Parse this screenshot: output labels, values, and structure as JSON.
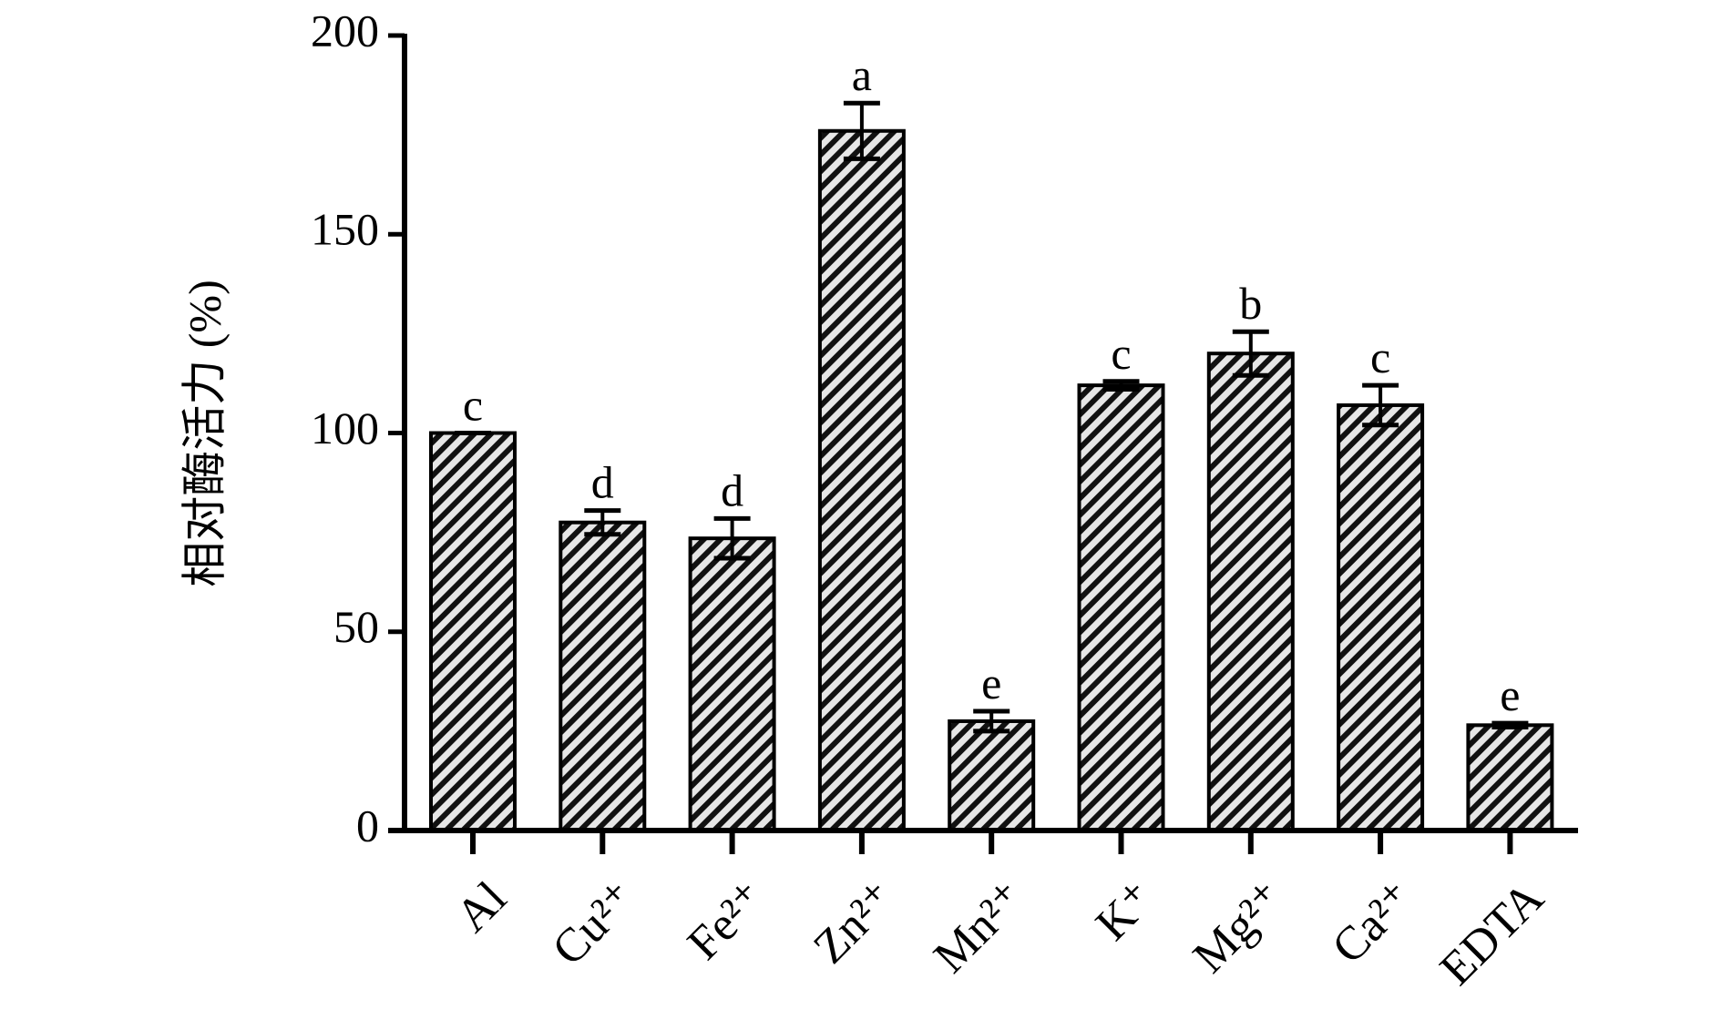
{
  "chart_data": {
    "type": "bar",
    "y_label": "相对酶活力 (%)",
    "categories": [
      "Al",
      "Cu²⁺",
      "Fe²⁺",
      "Zn²⁺",
      "Mn²⁺",
      "K⁺",
      "Mg²⁺",
      "Ca²⁺",
      "EDTA"
    ],
    "values": [
      100,
      77.5,
      73.5,
      176,
      27.5,
      112,
      120,
      107,
      26.5
    ],
    "errors": [
      0,
      3,
      5,
      7,
      2.5,
      1,
      5.5,
      5,
      0.5
    ],
    "annotations": [
      "c",
      "d",
      "d",
      "a",
      "e",
      "c",
      "b",
      "c",
      "e"
    ],
    "color": "#000000",
    "ylim": [
      0,
      200
    ],
    "yticks": [
      0,
      50,
      100,
      150,
      200
    ],
    "grid": false
  }
}
